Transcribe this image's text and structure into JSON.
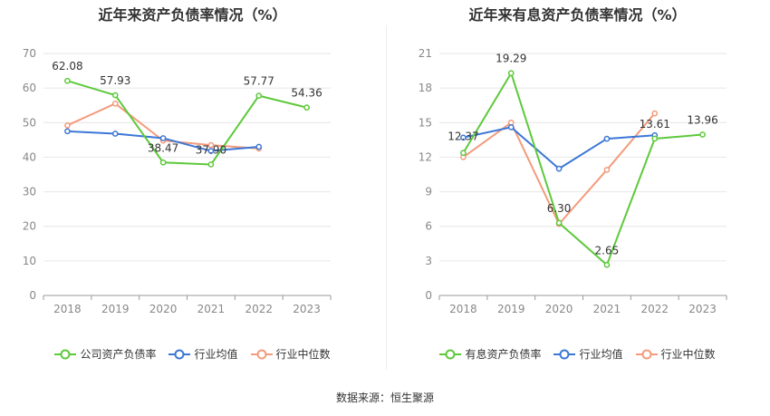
{
  "source_text": "数据来源：恒生聚源",
  "chart_data": [
    {
      "type": "line",
      "title": "近年来资产负债率情况（%）",
      "categories": [
        "2018",
        "2019",
        "2020",
        "2021",
        "2022",
        "2023"
      ],
      "ylim": [
        0,
        70
      ],
      "yticks": [
        0,
        10,
        20,
        30,
        40,
        50,
        60,
        70
      ],
      "grid": true,
      "legend_position": "bottom",
      "series": [
        {
          "name": "公司资产负债率",
          "color": "#5dc93b",
          "values": [
            62.08,
            57.93,
            38.47,
            37.9,
            57.77,
            54.36
          ],
          "labels": [
            "62.08",
            "57.93",
            "38.47",
            "37.90",
            "57.77",
            "54.36"
          ]
        },
        {
          "name": "行业均值",
          "color": "#3c77d6",
          "values": [
            47.5,
            46.8,
            45.5,
            41.8,
            43.0,
            null
          ]
        },
        {
          "name": "行业中位数",
          "color": "#f39b7c",
          "values": [
            49.2,
            55.5,
            44.8,
            43.5,
            42.5,
            null
          ]
        }
      ]
    },
    {
      "type": "line",
      "title": "近年来有息资产负债率情况（%）",
      "categories": [
        "2018",
        "2019",
        "2020",
        "2021",
        "2022",
        "2023"
      ],
      "ylim": [
        0,
        21
      ],
      "yticks": [
        0,
        3,
        6,
        9,
        12,
        15,
        18,
        21
      ],
      "grid": true,
      "legend_position": "bottom",
      "series": [
        {
          "name": "有息资产负债率",
          "color": "#5dc93b",
          "values": [
            12.37,
            19.29,
            6.3,
            2.65,
            13.61,
            13.96
          ],
          "labels": [
            "12.37",
            "19.29",
            "6.30",
            "2.65",
            "13.61",
            "13.96"
          ]
        },
        {
          "name": "行业均值",
          "color": "#3c77d6",
          "values": [
            13.7,
            14.6,
            11.0,
            13.6,
            13.9,
            null
          ]
        },
        {
          "name": "行业中位数",
          "color": "#f39b7c",
          "values": [
            12.0,
            15.0,
            6.2,
            10.9,
            15.8,
            null
          ]
        }
      ]
    }
  ]
}
